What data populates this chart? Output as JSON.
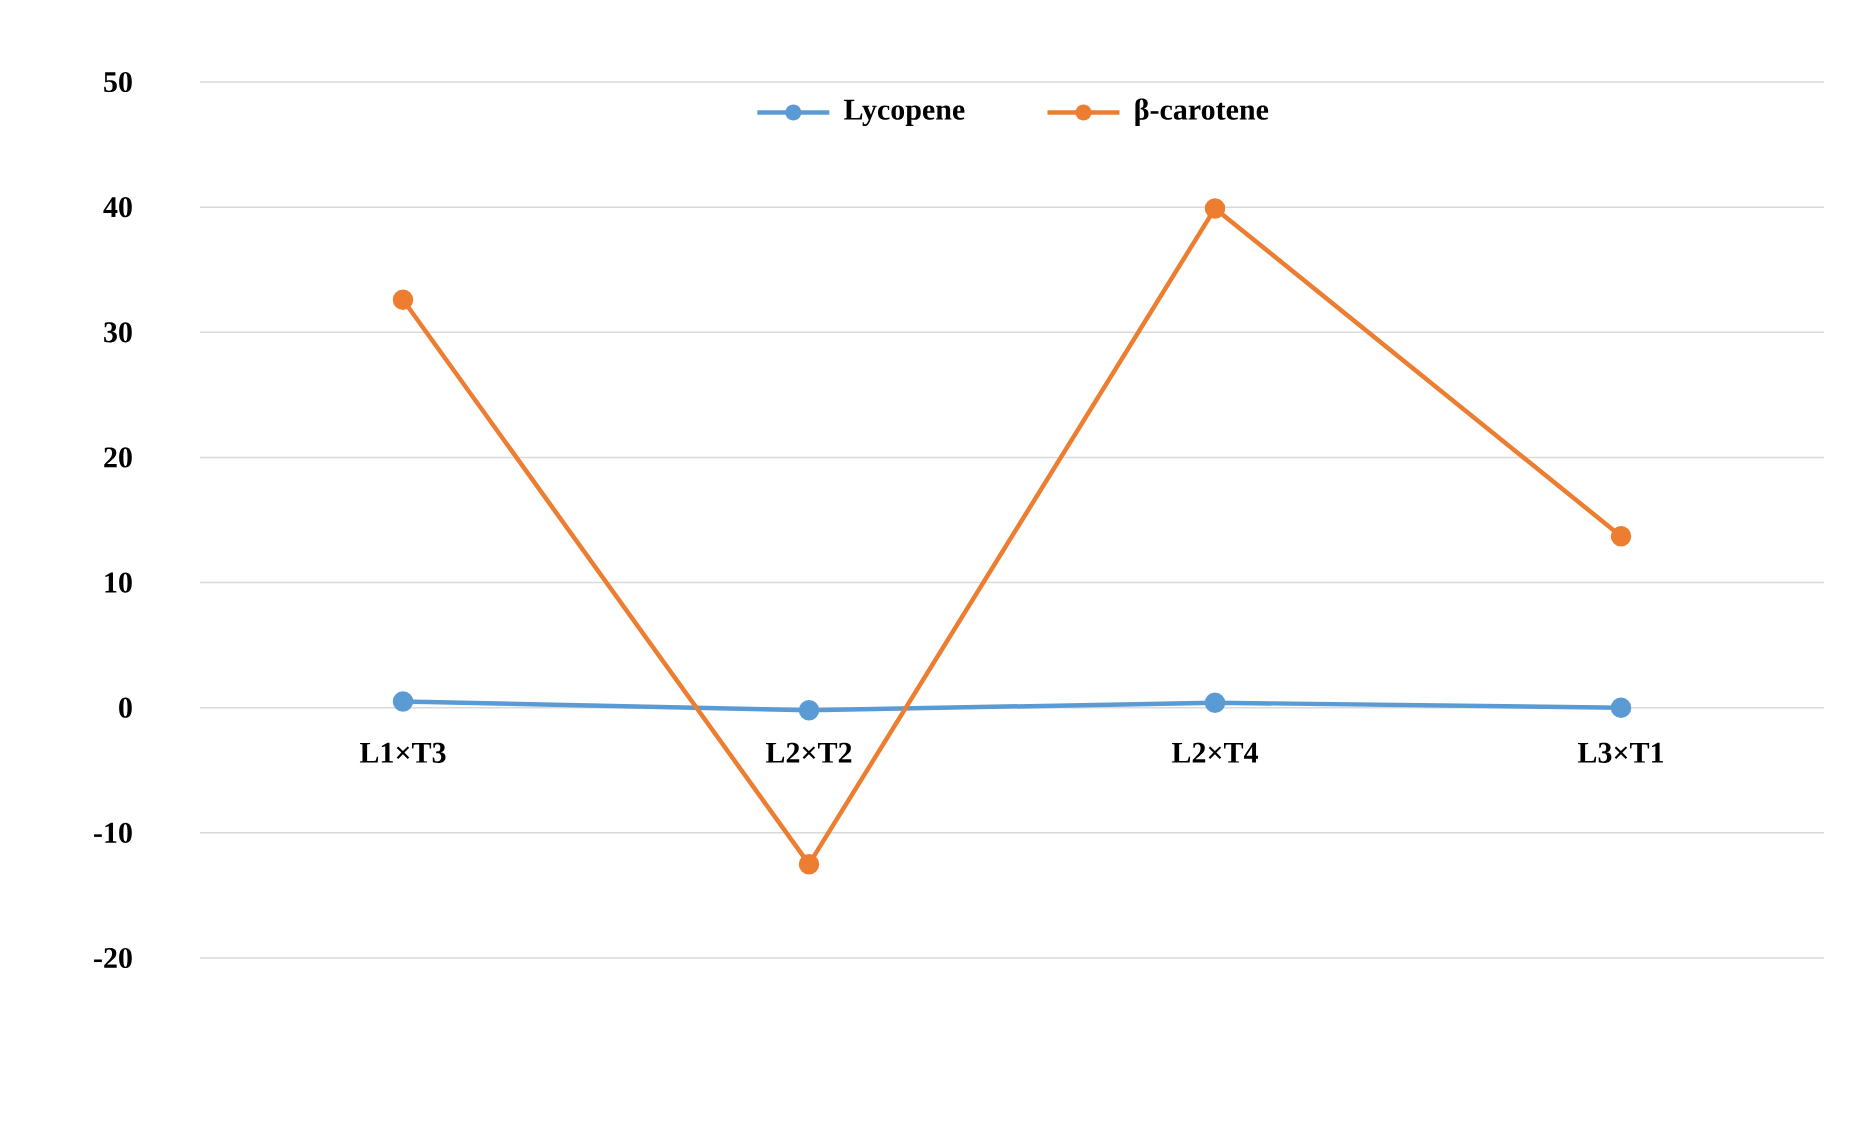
{
  "chart_data": {
    "type": "line",
    "categories": [
      "L1×T3",
      "L2×T2",
      "L2×T4",
      "L3×T1"
    ],
    "series": [
      {
        "name": "Lycopene",
        "color": "#5b9bd5",
        "values": [
          0.5,
          -0.2,
          0.4,
          0
        ]
      },
      {
        "name": "β-carotene",
        "color": "#ed7d31",
        "values": [
          32.6,
          -12.5,
          39.9,
          13.7
        ]
      }
    ],
    "ylim": [
      -20,
      50
    ],
    "yticks": [
      -20,
      -10,
      0,
      10,
      20,
      30,
      40,
      50
    ],
    "grid": "y",
    "legend": "top",
    "marker": "circle",
    "line_style": "solid"
  }
}
